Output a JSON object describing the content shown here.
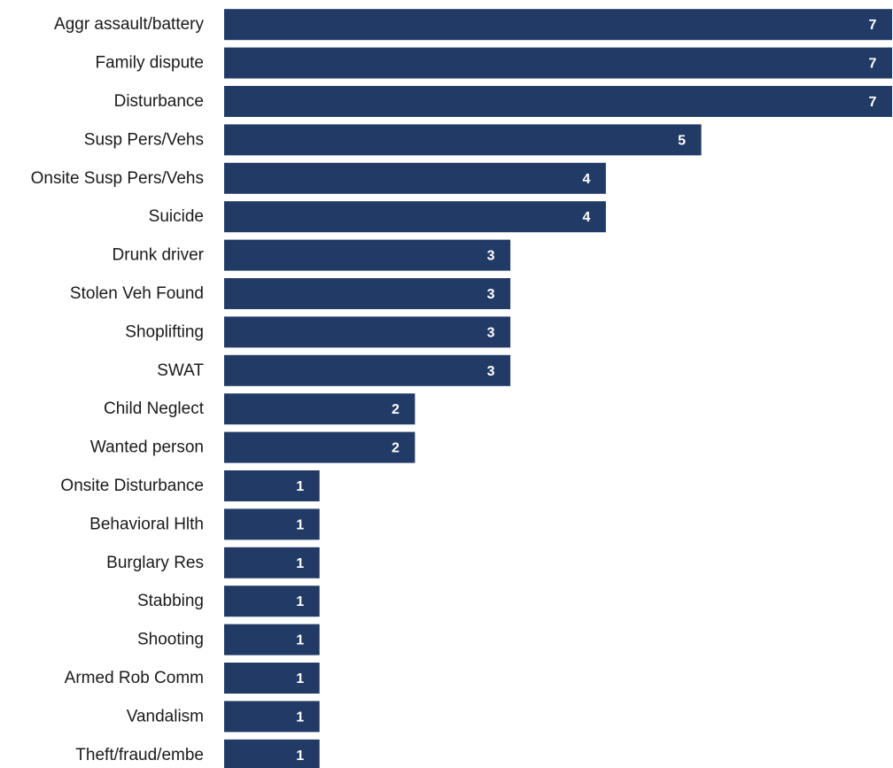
{
  "chart_data": {
    "type": "bar",
    "orientation": "horizontal",
    "title": "",
    "xlabel": "",
    "ylabel": "",
    "categories": [
      "Aggr assault/battery",
      "Family dispute",
      "Disturbance",
      "Susp Pers/Vehs",
      "Onsite Susp Pers/Vehs",
      "Suicide",
      "Drunk driver",
      "Stolen Veh Found",
      "Shoplifting",
      "SWAT",
      "Child Neglect",
      "Wanted person",
      "Onsite Disturbance",
      "Behavioral Hlth",
      "Burglary Res",
      "Stabbing",
      "Shooting",
      "Armed Rob Comm",
      "Vandalism",
      "Theft/fraud/embe"
    ],
    "values": [
      7,
      7,
      7,
      5,
      4,
      4,
      3,
      3,
      3,
      3,
      2,
      2,
      1,
      1,
      1,
      1,
      1,
      1,
      1,
      1
    ],
    "xlim": [
      0,
      7
    ],
    "grid": false,
    "legend": "none",
    "data_labels": true,
    "bar_color": "#213a66",
    "label_color": "#ffffff"
  }
}
